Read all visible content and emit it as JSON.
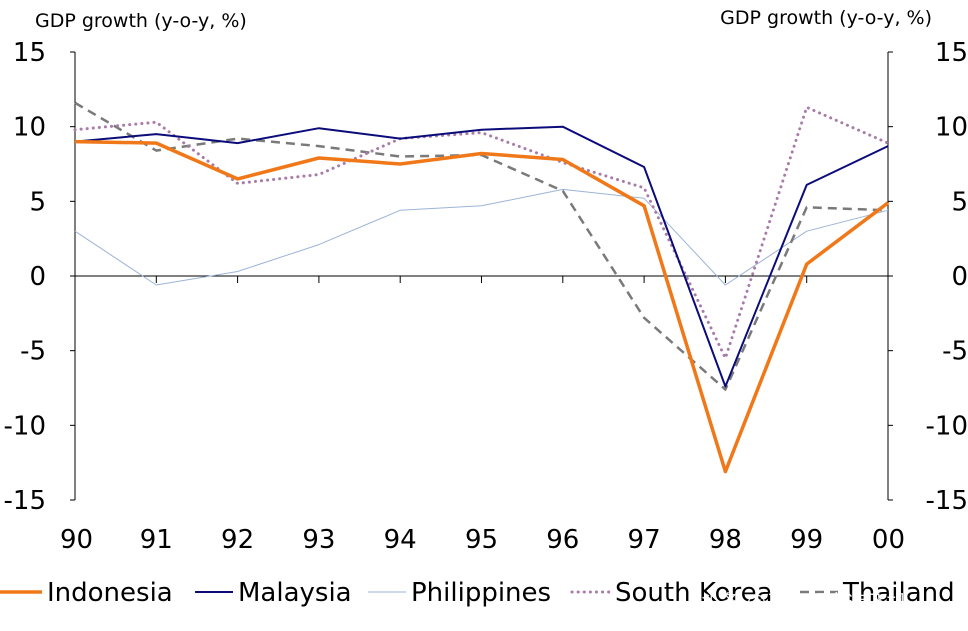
{
  "chart_data": {
    "type": "line",
    "title": "",
    "ylabel_left": "GDP growth (y-o-y, %)",
    "ylabel_right": "GDP growth (y-o-y, %)",
    "xlabel": "",
    "categories": [
      "90",
      "91",
      "92",
      "93",
      "94",
      "95",
      "96",
      "97",
      "98",
      "99",
      "00"
    ],
    "ylim": [
      -15,
      15
    ],
    "yticks": [
      15,
      10,
      5,
      0,
      -5,
      -10,
      -15
    ],
    "ytick_labels": [
      "15",
      "10",
      "5",
      "0",
      "-5",
      "-10",
      "-15"
    ],
    "grid": false,
    "legend_position": "bottom",
    "series": [
      {
        "name": "Indonesia",
        "color": "#f07818",
        "style": "solid-thick",
        "values": [
          9.0,
          8.9,
          6.5,
          7.9,
          7.5,
          8.2,
          7.8,
          4.7,
          -13.1,
          0.8,
          4.9
        ]
      },
      {
        "name": "Malaysia",
        "color": "#0b0b7a",
        "style": "solid",
        "values": [
          9.0,
          9.5,
          8.9,
          9.9,
          9.2,
          9.8,
          10.0,
          7.3,
          -7.4,
          6.1,
          8.7
        ]
      },
      {
        "name": "Philippines",
        "color": "#9db4d6",
        "style": "thin",
        "values": [
          3.0,
          -0.6,
          0.3,
          2.1,
          4.4,
          4.7,
          5.8,
          5.2,
          -0.6,
          3.0,
          4.4
        ]
      },
      {
        "name": "South Korea",
        "color": "#a87ca8",
        "style": "dotted",
        "values": [
          9.8,
          10.3,
          6.2,
          6.8,
          9.2,
          9.6,
          7.6,
          5.9,
          -5.5,
          11.3,
          8.9
        ]
      },
      {
        "name": "Thailand",
        "color": "#7a7a7a",
        "style": "dashed",
        "values": [
          11.6,
          8.4,
          9.2,
          8.7,
          8.0,
          8.1,
          5.7,
          -2.8,
          -7.6,
          4.6,
          4.4
        ]
      }
    ],
    "legend_labels": [
      "Indonesia",
      "Malaysia",
      "Philippines",
      "South Korea",
      "Thailand"
    ]
  },
  "watermark": "头条 @马卡耶夫造飞机"
}
